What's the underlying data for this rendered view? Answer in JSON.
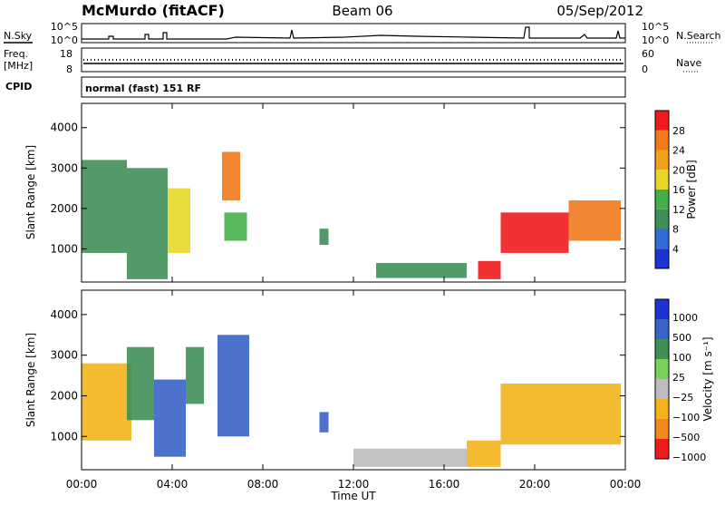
{
  "header": {
    "station": "McMurdo (fitACF)",
    "beam": "Beam 06",
    "date": "05/Sep/2012"
  },
  "panels": {
    "nsky": {
      "left_label": "N.Sky",
      "right_label": "N.Search",
      "left_top": "10^5",
      "left_bottom": "10^0",
      "right_top": "10^5",
      "right_bottom": "10^0"
    },
    "freq": {
      "left_label": "Freq.",
      "unit": "[MHz]",
      "left_top": "18",
      "left_bottom": "8",
      "right_label": "Nave",
      "right_top": "60",
      "right_bottom": "0"
    },
    "cpid": {
      "label": "CPID",
      "value": "normal (fast) 151 RF"
    }
  },
  "colors": {
    "low_power_blue": "#1f33d4",
    "high_power_red": "#ee1c1c",
    "velocity_orange": "#f08a1c",
    "velocity_green": "#3f8f57"
  },
  "chart_data": [
    {
      "type": "heatmap",
      "title": "Power",
      "ylabel": "Slant Range [km]",
      "xlabel": "Time UT",
      "x_ticks": [
        "00:00",
        "04:00",
        "08:00",
        "12:00",
        "16:00",
        "20:00",
        "00:00"
      ],
      "y_ticks": [
        1000,
        2000,
        3000,
        4000
      ],
      "ylim": [
        180,
        4600
      ],
      "colorbar": {
        "label": "Power [dB]",
        "ticks": [
          4,
          8,
          12,
          16,
          20,
          24,
          28
        ]
      },
      "regions": [
        {
          "t": [
            0.0,
            2.0
          ],
          "r": [
            900,
            3200
          ],
          "v": 8
        },
        {
          "t": [
            2.0,
            3.8
          ],
          "r": [
            250,
            3000
          ],
          "v": 10
        },
        {
          "t": [
            3.8,
            4.8
          ],
          "r": [
            900,
            2500
          ],
          "v": 16
        },
        {
          "t": [
            6.2,
            7.0
          ],
          "r": [
            2200,
            3400
          ],
          "v": 24
        },
        {
          "t": [
            6.3,
            7.3
          ],
          "r": [
            1200,
            1900
          ],
          "v": 14
        },
        {
          "t": [
            10.5,
            10.9
          ],
          "r": [
            1100,
            1500
          ],
          "v": 10
        },
        {
          "t": [
            13.0,
            17.0
          ],
          "r": [
            280,
            650
          ],
          "v": 10
        },
        {
          "t": [
            17.5,
            18.5
          ],
          "r": [
            250,
            700
          ],
          "v": 28
        },
        {
          "t": [
            18.5,
            21.5
          ],
          "r": [
            900,
            1900
          ],
          "v": 28
        },
        {
          "t": [
            21.5,
            23.8
          ],
          "r": [
            1200,
            2200
          ],
          "v": 26
        }
      ]
    },
    {
      "type": "heatmap",
      "title": "Velocity",
      "ylabel": "Slant Range [km]",
      "xlabel": "Time UT",
      "x_ticks": [
        "00:00",
        "04:00",
        "08:00",
        "12:00",
        "16:00",
        "20:00",
        "00:00"
      ],
      "y_ticks": [
        1000,
        2000,
        3000,
        4000
      ],
      "ylim": [
        180,
        4600
      ],
      "colorbar": {
        "label": "Velocity [m s⁻¹]",
        "ticks": [
          "1000",
          "500",
          "100",
          "25",
          "−25",
          "−100",
          "−500",
          "−1000"
        ]
      },
      "regions": [
        {
          "t": [
            0.0,
            2.2
          ],
          "r": [
            900,
            2800
          ],
          "v": -100
        },
        {
          "t": [
            2.0,
            3.2
          ],
          "r": [
            1400,
            3200
          ],
          "v": 100
        },
        {
          "t": [
            3.2,
            4.6
          ],
          "r": [
            500,
            2400
          ],
          "v": 500
        },
        {
          "t": [
            4.6,
            5.4
          ],
          "r": [
            1800,
            3200
          ],
          "v": 100
        },
        {
          "t": [
            6.0,
            7.4
          ],
          "r": [
            1000,
            3500
          ],
          "v": 500
        },
        {
          "t": [
            10.5,
            10.9
          ],
          "r": [
            1100,
            1600
          ],
          "v": 500
        },
        {
          "t": [
            12.0,
            17.0
          ],
          "r": [
            250,
            700
          ],
          "v": -25
        },
        {
          "t": [
            17.0,
            18.5
          ],
          "r": [
            250,
            900
          ],
          "v": -100
        },
        {
          "t": [
            18.5,
            23.8
          ],
          "r": [
            800,
            2300
          ],
          "v": -100
        }
      ]
    }
  ]
}
